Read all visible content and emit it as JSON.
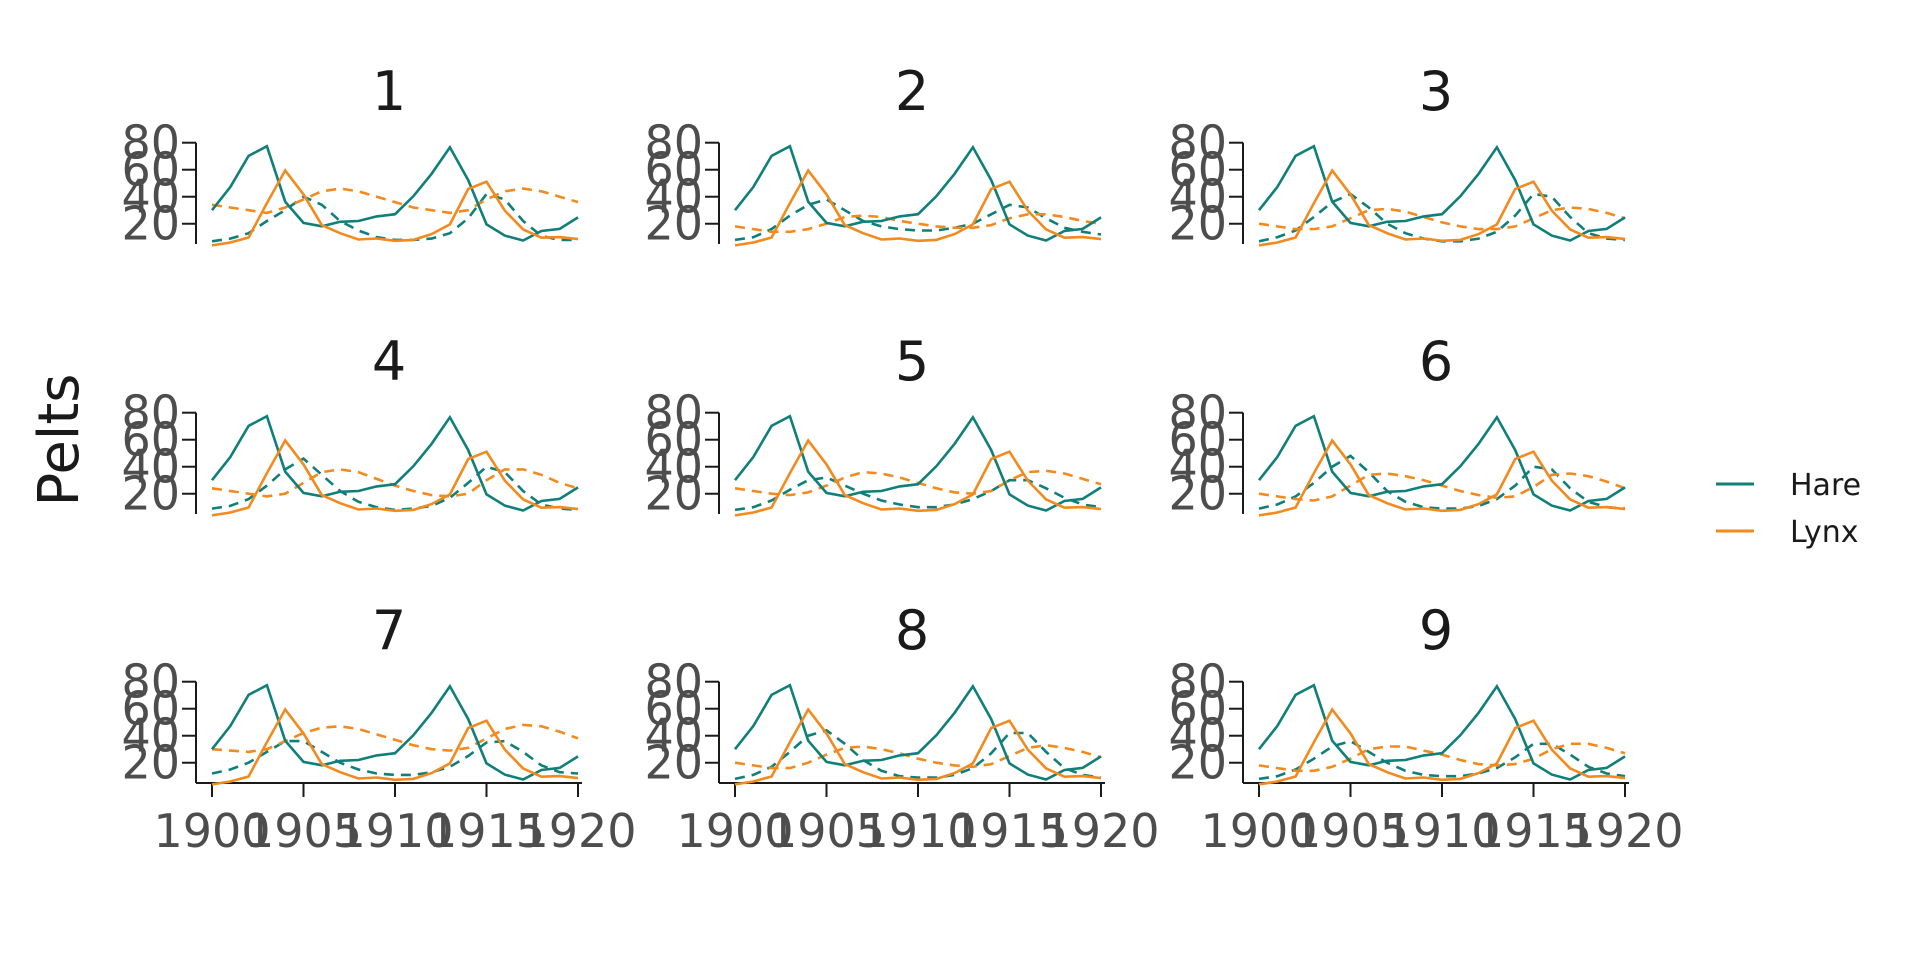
{
  "chart_data": {
    "type": "line",
    "layout": "small-multiples 3x3",
    "ylabel": "Pelts",
    "xlim": [
      1900,
      1920
    ],
    "ylim": [
      5,
      82
    ],
    "xticks": [
      1900,
      1905,
      1910,
      1915,
      1920
    ],
    "yticks": [
      20,
      40,
      60,
      80
    ],
    "legend": {
      "placement": "right",
      "entries": [
        {
          "name": "Hare",
          "color": "#0f7f7a"
        },
        {
          "name": "Lynx",
          "color": "#f28a1e"
        }
      ]
    },
    "observed": {
      "x": [
        1900,
        1901,
        1902,
        1903,
        1904,
        1905,
        1906,
        1907,
        1908,
        1909,
        1910,
        1911,
        1912,
        1913,
        1914,
        1915,
        1916,
        1917,
        1918,
        1919,
        1920
      ],
      "hare": [
        30,
        47.2,
        70.2,
        77.4,
        36.3,
        20.6,
        18.1,
        21.4,
        22,
        25.4,
        27.1,
        40.3,
        57,
        76.6,
        52.3,
        19.5,
        11.2,
        7.6,
        14.6,
        16.2,
        24.7
      ],
      "lynx": [
        4,
        6.1,
        9.8,
        35.2,
        59.4,
        41.7,
        19,
        13,
        8.3,
        9.1,
        7.4,
        8,
        12.3,
        19.5,
        45.7,
        51.1,
        29.7,
        15.8,
        9.7,
        10.1,
        8.6
      ]
    },
    "panels": [
      {
        "title": "1",
        "hare": [
          7,
          9,
          13,
          22,
          30,
          40,
          34,
          22,
          15,
          10,
          8,
          8,
          9,
          13,
          24,
          42,
          38,
          22,
          11,
          8,
          8
        ],
        "lynx": [
          34,
          32,
          30,
          28,
          32,
          38,
          44,
          46,
          44,
          40,
          36,
          32,
          30,
          28,
          30,
          38,
          44,
          46,
          44,
          40,
          36
        ]
      },
      {
        "title": "2",
        "hare": [
          8,
          10,
          16,
          26,
          34,
          38,
          30,
          22,
          18,
          16,
          15,
          15,
          17,
          20,
          27,
          34,
          32,
          24,
          17,
          14,
          12
        ],
        "lynx": [
          18,
          16,
          14,
          14,
          16,
          20,
          25,
          26,
          25,
          22,
          20,
          18,
          17,
          17,
          19,
          24,
          27,
          27,
          25,
          22,
          20
        ]
      },
      {
        "title": "3",
        "hare": [
          7,
          10,
          15,
          25,
          36,
          42,
          32,
          20,
          13,
          9,
          7,
          7,
          9,
          14,
          26,
          42,
          40,
          25,
          13,
          9,
          8
        ],
        "lynx": [
          20,
          18,
          16,
          16,
          18,
          24,
          30,
          31,
          29,
          25,
          21,
          18,
          16,
          16,
          18,
          24,
          30,
          32,
          31,
          28,
          24
        ]
      },
      {
        "title": "4",
        "hare": [
          9,
          11,
          16,
          26,
          38,
          46,
          34,
          22,
          14,
          10,
          8,
          9,
          11,
          17,
          28,
          40,
          36,
          22,
          12,
          9,
          8
        ],
        "lynx": [
          24,
          22,
          20,
          18,
          20,
          28,
          36,
          38,
          36,
          31,
          26,
          22,
          19,
          18,
          20,
          30,
          38,
          38,
          34,
          28,
          24
        ]
      },
      {
        "title": "5",
        "hare": [
          8,
          10,
          15,
          23,
          30,
          32,
          26,
          20,
          15,
          12,
          10,
          10,
          12,
          16,
          22,
          30,
          30,
          24,
          17,
          12,
          10
        ],
        "lynx": [
          24,
          22,
          20,
          19,
          21,
          26,
          32,
          36,
          35,
          32,
          28,
          24,
          21,
          20,
          22,
          30,
          36,
          37,
          35,
          31,
          27
        ]
      },
      {
        "title": "6",
        "hare": [
          9,
          12,
          18,
          28,
          40,
          48,
          36,
          22,
          14,
          10,
          9,
          9,
          11,
          16,
          26,
          40,
          38,
          24,
          14,
          10,
          9
        ],
        "lynx": [
          20,
          18,
          16,
          15,
          18,
          26,
          34,
          35,
          33,
          30,
          26,
          22,
          19,
          17,
          18,
          25,
          34,
          35,
          33,
          29,
          24
        ]
      },
      {
        "title": "7",
        "hare": [
          12,
          15,
          20,
          28,
          36,
          36,
          28,
          20,
          15,
          12,
          11,
          11,
          13,
          17,
          25,
          35,
          36,
          28,
          18,
          13,
          12
        ],
        "lynx": [
          30,
          29,
          28,
          30,
          36,
          42,
          46,
          47,
          45,
          41,
          37,
          33,
          30,
          29,
          31,
          38,
          45,
          48,
          47,
          43,
          38
        ]
      },
      {
        "title": "8",
        "hare": [
          8,
          11,
          17,
          28,
          40,
          44,
          34,
          22,
          14,
          10,
          9,
          9,
          11,
          16,
          27,
          42,
          42,
          28,
          16,
          11,
          9
        ],
        "lynx": [
          20,
          18,
          16,
          16,
          20,
          26,
          31,
          32,
          30,
          27,
          23,
          20,
          18,
          17,
          19,
          25,
          31,
          33,
          31,
          28,
          24
        ]
      },
      {
        "title": "9",
        "hare": [
          8,
          10,
          15,
          23,
          32,
          36,
          28,
          20,
          14,
          11,
          10,
          10,
          12,
          16,
          24,
          34,
          34,
          26,
          17,
          12,
          10
        ],
        "lynx": [
          18,
          16,
          14,
          14,
          17,
          23,
          30,
          32,
          32,
          29,
          26,
          22,
          19,
          18,
          19,
          23,
          30,
          34,
          34,
          31,
          27
        ]
      }
    ]
  }
}
